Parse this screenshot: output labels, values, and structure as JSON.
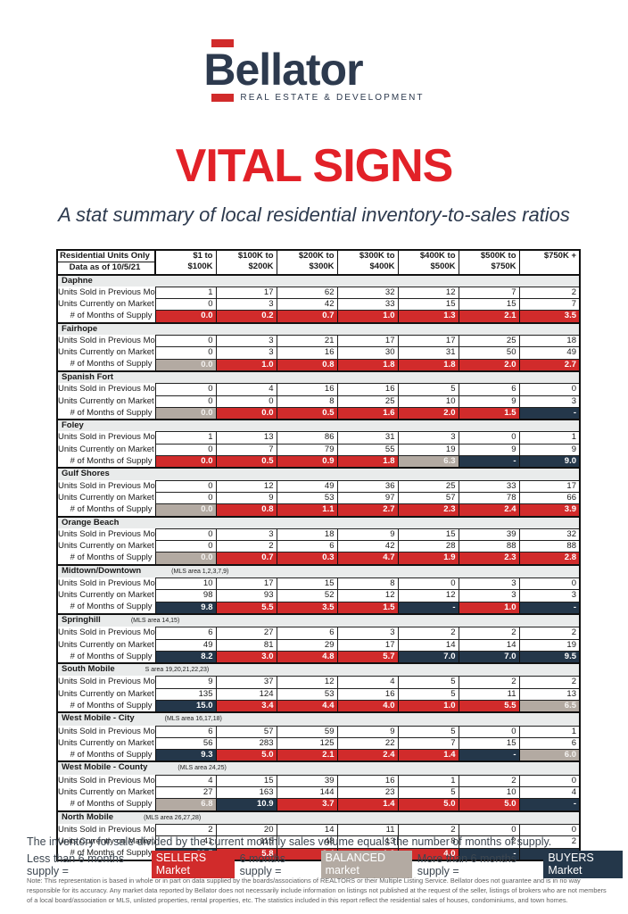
{
  "colors": {
    "red": "#D12B2B",
    "gray": "#B3AAA2",
    "dark": "#24374A",
    "navy": "#2D3A4E",
    "title_red": "#E22128",
    "region_bg": "#E9EBEB",
    "legend_text": "#3C4650"
  },
  "logo": {
    "word": "Bellator",
    "tagline": "REAL ESTATE & DEVELOPMENT"
  },
  "title": "VITAL SIGNS",
  "subtitle": "A stat summary of local residential inventory-to-sales ratios",
  "table": {
    "corner": {
      "line1": "Residential Units Only",
      "line2": "Data as of 10/5/21"
    },
    "columns": [
      {
        "line1": "$1 to",
        "line2": "$100K"
      },
      {
        "line1": "$100K to",
        "line2": "$200K"
      },
      {
        "line1": "$200K to",
        "line2": "$300K"
      },
      {
        "line1": "$300K to",
        "line2": "$400K"
      },
      {
        "line1": "$400K to",
        "line2": "$500K"
      },
      {
        "line1": "$500K to",
        "line2": "$750K"
      },
      {
        "line1": "$750K +",
        "line2": ""
      }
    ],
    "row_labels": {
      "sold": "Units Sold in Previous Month",
      "market": "Units Currently on Market",
      "supply": "# of Months of Supply"
    },
    "regions": [
      {
        "name": "Daphne",
        "mls": "",
        "sold": [
          "1",
          "17",
          "62",
          "32",
          "12",
          "7",
          "2"
        ],
        "market": [
          "0",
          "3",
          "42",
          "33",
          "15",
          "15",
          "7"
        ],
        "supply": [
          "0.0",
          "0.2",
          "0.7",
          "1.0",
          "1.3",
          "2.1",
          "3.5"
        ],
        "supply_colors": [
          "red",
          "red",
          "red",
          "red",
          "red",
          "red",
          "red"
        ]
      },
      {
        "name": "Fairhope",
        "mls": "",
        "sold": [
          "0",
          "3",
          "21",
          "17",
          "17",
          "25",
          "18"
        ],
        "market": [
          "0",
          "3",
          "16",
          "30",
          "31",
          "50",
          "49"
        ],
        "supply": [
          "0.0",
          "1.0",
          "0.8",
          "1.8",
          "1.8",
          "2.0",
          "2.7"
        ],
        "supply_colors": [
          "gray",
          "red",
          "red",
          "red",
          "red",
          "red",
          "red"
        ]
      },
      {
        "name": "Spanish Fort",
        "mls": "",
        "sold": [
          "0",
          "4",
          "16",
          "16",
          "5",
          "6",
          "0"
        ],
        "market": [
          "0",
          "0",
          "8",
          "25",
          "10",
          "9",
          "3"
        ],
        "supply": [
          "0.0",
          "0.0",
          "0.5",
          "1.6",
          "2.0",
          "1.5",
          "-"
        ],
        "supply_colors": [
          "gray",
          "red",
          "red",
          "red",
          "red",
          "red",
          "dark"
        ]
      },
      {
        "name": "Foley",
        "mls": "",
        "sold": [
          "1",
          "13",
          "86",
          "31",
          "3",
          "0",
          "1"
        ],
        "market": [
          "0",
          "7",
          "79",
          "55",
          "19",
          "9",
          "9"
        ],
        "supply": [
          "0.0",
          "0.5",
          "0.9",
          "1.8",
          "6.3",
          "-",
          "9.0"
        ],
        "supply_colors": [
          "red",
          "red",
          "red",
          "red",
          "gray",
          "dark",
          "dark"
        ]
      },
      {
        "name": "Gulf Shores",
        "mls": "",
        "sold": [
          "0",
          "12",
          "49",
          "36",
          "25",
          "33",
          "17"
        ],
        "market": [
          "0",
          "9",
          "53",
          "97",
          "57",
          "78",
          "66"
        ],
        "supply": [
          "0.0",
          "0.8",
          "1.1",
          "2.7",
          "2.3",
          "2.4",
          "3.9"
        ],
        "supply_colors": [
          "gray",
          "red",
          "red",
          "red",
          "red",
          "red",
          "red"
        ]
      },
      {
        "name": "Orange Beach",
        "mls": "",
        "sold": [
          "0",
          "3",
          "18",
          "9",
          "15",
          "39",
          "32"
        ],
        "market": [
          "0",
          "2",
          "6",
          "42",
          "28",
          "88",
          "88"
        ],
        "supply": [
          "0.0",
          "0.7",
          "0.3",
          "4.7",
          "1.9",
          "2.3",
          "2.8"
        ],
        "supply_colors": [
          "gray",
          "red",
          "red",
          "red",
          "red",
          "red",
          "red"
        ]
      },
      {
        "name": "Midtown/Downtown",
        "mls": "(MLS area 1,2,3,7,9)",
        "sold": [
          "10",
          "17",
          "15",
          "8",
          "0",
          "3",
          "0"
        ],
        "market": [
          "98",
          "93",
          "52",
          "12",
          "12",
          "3",
          "3"
        ],
        "supply": [
          "9.8",
          "5.5",
          "3.5",
          "1.5",
          "-",
          "1.0",
          "-"
        ],
        "supply_colors": [
          "dark",
          "red",
          "red",
          "red",
          "dark",
          "red",
          "dark"
        ]
      },
      {
        "name": "Springhill",
        "mls": "(MLS area 14,15)",
        "sold": [
          "6",
          "27",
          "6",
          "3",
          "2",
          "2",
          "2"
        ],
        "market": [
          "49",
          "81",
          "29",
          "17",
          "14",
          "14",
          "19"
        ],
        "supply": [
          "8.2",
          "3.0",
          "4.8",
          "5.7",
          "7.0",
          "7.0",
          "9.5"
        ],
        "supply_colors": [
          "dark",
          "red",
          "red",
          "red",
          "dark",
          "dark",
          "dark"
        ]
      },
      {
        "name": "South Mobile",
        "mls": "S area 19,20,21,22,23)",
        "sold": [
          "9",
          "37",
          "12",
          "4",
          "5",
          "2",
          "2"
        ],
        "market": [
          "135",
          "124",
          "53",
          "16",
          "5",
          "11",
          "13"
        ],
        "supply": [
          "15.0",
          "3.4",
          "4.4",
          "4.0",
          "1.0",
          "5.5",
          "6.5"
        ],
        "supply_colors": [
          "dark",
          "red",
          "red",
          "red",
          "red",
          "red",
          "gray"
        ]
      },
      {
        "name": "West Mobile - City",
        "mls": "(MLS area 16,17,18)",
        "sold": [
          "6",
          "57",
          "59",
          "9",
          "5",
          "0",
          "1"
        ],
        "market": [
          "56",
          "283",
          "125",
          "22",
          "7",
          "15",
          "6"
        ],
        "supply": [
          "9.3",
          "5.0",
          "2.1",
          "2.4",
          "1.4",
          "-",
          "6.0"
        ],
        "supply_colors": [
          "dark",
          "red",
          "red",
          "red",
          "red",
          "dark",
          "gray"
        ]
      },
      {
        "name": "West Mobile - County",
        "mls": "(MLS area 24,25)",
        "sold": [
          "4",
          "15",
          "39",
          "16",
          "1",
          "2",
          "0"
        ],
        "market": [
          "27",
          "163",
          "144",
          "23",
          "5",
          "10",
          "4"
        ],
        "supply": [
          "6.8",
          "10.9",
          "3.7",
          "1.4",
          "5.0",
          "5.0",
          "-"
        ],
        "supply_colors": [
          "gray",
          "dark",
          "red",
          "red",
          "red",
          "red",
          "dark"
        ]
      },
      {
        "name": "North Mobile",
        "mls": "(MLS area 26,27,28)",
        "sold": [
          "2",
          "20",
          "14",
          "11",
          "2",
          "0",
          "0"
        ],
        "market": [
          "41",
          "115",
          "48",
          "13",
          "8",
          "2",
          "2"
        ],
        "supply": [
          "20.5",
          "5.8",
          "3.4",
          "1.2",
          "4.0",
          "-",
          "-"
        ],
        "supply_colors": [
          "dark",
          "red",
          "red",
          "red",
          "red",
          "dark",
          "dark"
        ]
      }
    ]
  },
  "footer": {
    "line1": "The inventory for sale divided by the current monthly sales volume equals the number of months of supply.",
    "legend": [
      {
        "text": "Less than 6 months supply ="
      },
      {
        "badge": "SELLERS Market",
        "style": "red"
      },
      {
        "text": "6 months supply ="
      },
      {
        "badge": "BALANCED market",
        "style": "gray"
      },
      {
        "text": "More than 6 months supply ="
      },
      {
        "badge": "BUYERS Market",
        "style": "dark"
      }
    ],
    "note": "Note: This representation is based in whole or in part on data supplied by the boards/associations of REALTORS or their Multiple Listing Service. Bellator does not guarantee and is in no way responsible for its accuracy. Any market data reported by Bellator does not necessarily include information on listings not published at the request of the seller, listings of brokers who are not members of a local board/association or MLS, unlisted properties, rental properties, etc. The statistics included in this report reflect the residential sales of houses, condominiums, and town homes."
  }
}
